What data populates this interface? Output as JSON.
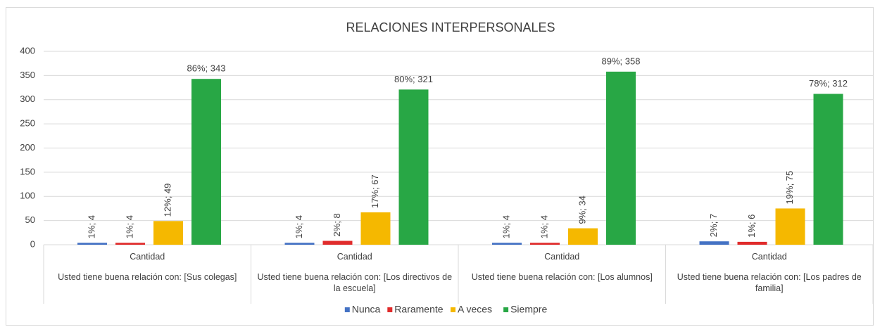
{
  "chart_data": {
    "type": "bar",
    "title": "RELACIONES INTERPERSONALES",
    "categories": [
      "Usted tiene buena relación con: [Sus colegas]",
      "Usted tiene buena relación con: [Los directivos de la escuela]",
      "Usted tiene buena relación con: [Los alumnos]",
      "Usted tiene buena relación con: [Los padres de familia]"
    ],
    "subcategories": [
      "Cantidad",
      "Cantidad",
      "Cantidad",
      "Cantidad"
    ],
    "series": [
      {
        "name": "Nunca",
        "color": "#4472c4",
        "values": [
          4,
          4,
          4,
          7
        ],
        "value_labels": [
          "1%; 4",
          "1%; 4",
          "1%; 4",
          "2%; 7"
        ]
      },
      {
        "name": "Raramente",
        "color": "#e02b2b",
        "values": [
          4,
          8,
          4,
          6
        ],
        "value_labels": [
          "1%; 4",
          "2%; 8",
          "1%; 4",
          "1%; 6"
        ]
      },
      {
        "name": "A veces",
        "color": "#f5b800",
        "values": [
          49,
          67,
          34,
          75
        ],
        "value_labels": [
          "12%; 49",
          "17%; 67",
          "9%; 34",
          "19%; 75"
        ]
      },
      {
        "name": "Siempre",
        "color": "#28a745",
        "values": [
          343,
          321,
          358,
          312
        ],
        "value_labels": [
          "86%; 343",
          "80%; 321",
          "89%; 358",
          "78%; 312"
        ]
      }
    ],
    "ylim": [
      0,
      400
    ],
    "yticks": [
      0,
      50,
      100,
      150,
      200,
      250,
      300,
      350,
      400
    ],
    "grid": true,
    "legend": "bottom"
  }
}
